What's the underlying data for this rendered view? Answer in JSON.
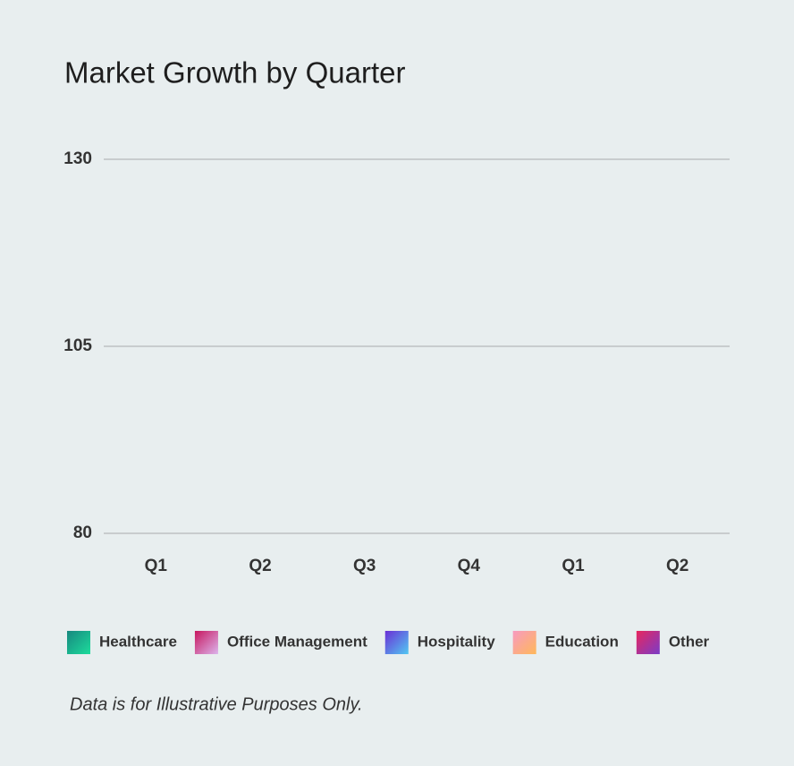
{
  "chart_data": {
    "type": "bar",
    "title": "Market Growth by Quarter",
    "categories": [
      "Q1",
      "Q2",
      "Q3",
      "Q4",
      "Q1",
      "Q2"
    ],
    "series": [
      {
        "name": "Healthcare",
        "colors": [
          "#17887f",
          "#1ddc9c"
        ],
        "values": [
          null,
          null,
          null,
          null,
          null,
          null
        ]
      },
      {
        "name": "Office Management",
        "colors": [
          "#c7175f",
          "#dcb4ec"
        ],
        "values": [
          null,
          null,
          null,
          null,
          null,
          null
        ]
      },
      {
        "name": "Hospitality",
        "colors": [
          "#6a2fd6",
          "#52c8f2"
        ],
        "values": [
          null,
          null,
          null,
          null,
          null,
          null
        ]
      },
      {
        "name": "Education",
        "colors": [
          "#f79ac0",
          "#ffb85a"
        ],
        "values": [
          null,
          null,
          null,
          null,
          null,
          null
        ]
      },
      {
        "name": "Other",
        "colors": [
          "#e8265e",
          "#7a3cc8"
        ],
        "values": [
          null,
          null,
          null,
          null,
          null,
          null
        ]
      }
    ],
    "ylim": [
      80,
      130
    ],
    "yticks": [
      80,
      105,
      130
    ],
    "grid": true,
    "legend": "bottom",
    "note": "Data is for Illustrative Purposes Only."
  }
}
